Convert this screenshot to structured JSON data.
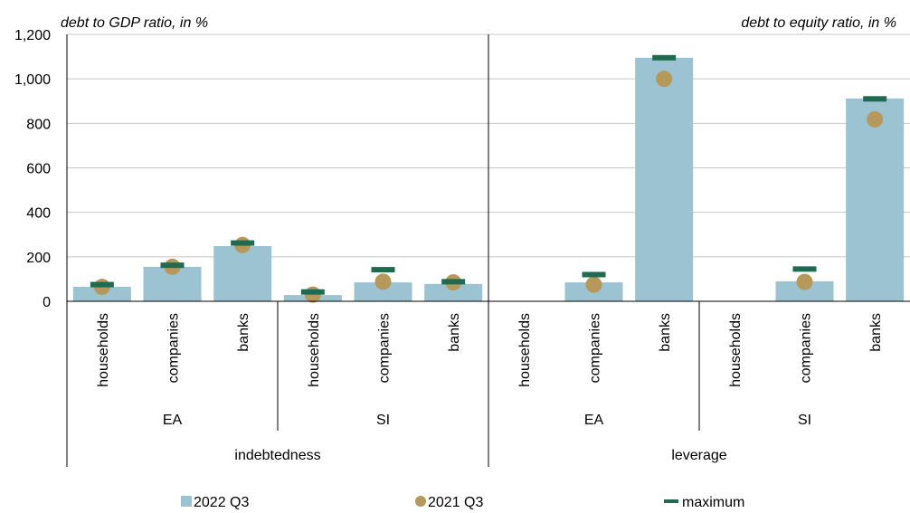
{
  "chart_data": {
    "type": "bar",
    "left_axis_note": "debt to GDP ratio, in %",
    "right_axis_note": "debt to equity ratio, in %",
    "ylim": [
      0,
      1200
    ],
    "y_ticks": [
      0,
      200,
      400,
      600,
      800,
      1000,
      1200
    ],
    "y_tick_labels": [
      "0",
      "200",
      "400",
      "600",
      "800",
      "1,000",
      "1,200"
    ],
    "grid": true,
    "categories": [
      "households",
      "companies",
      "banks",
      "households",
      "companies",
      "banks",
      "households",
      "companies",
      "banks",
      "households",
      "companies",
      "banks"
    ],
    "country_groups": [
      {
        "label": "EA",
        "span": [
          0,
          2
        ]
      },
      {
        "label": "SI",
        "span": [
          3,
          5
        ]
      },
      {
        "label": "EA",
        "span": [
          6,
          8
        ]
      },
      {
        "label": "SI",
        "span": [
          9,
          11
        ]
      }
    ],
    "panel_groups": [
      {
        "label": "indebtedness",
        "span": [
          0,
          5
        ]
      },
      {
        "label": "leverage",
        "span": [
          6,
          11
        ]
      }
    ],
    "series": [
      {
        "name": "2022 Q3",
        "kind": "bar",
        "color": "#9bc3d1",
        "values": [
          65,
          155,
          248,
          28,
          85,
          78,
          null,
          85,
          1095,
          null,
          90,
          912
        ]
      },
      {
        "name": "2021 Q3",
        "kind": "dot",
        "color": "#b5985a",
        "values": [
          65,
          155,
          253,
          30,
          88,
          85,
          null,
          75,
          1000,
          null,
          87,
          818
        ]
      },
      {
        "name": "maximum",
        "kind": "dash",
        "color": "#1f6b52",
        "values": [
          75,
          162,
          262,
          42,
          142,
          88,
          null,
          120,
          1095,
          null,
          145,
          910
        ]
      }
    ],
    "legend_position": "bottom"
  },
  "legend": {
    "bar_label": "2022 Q3",
    "dot_label": "2021 Q3",
    "dash_label": "maximum"
  }
}
